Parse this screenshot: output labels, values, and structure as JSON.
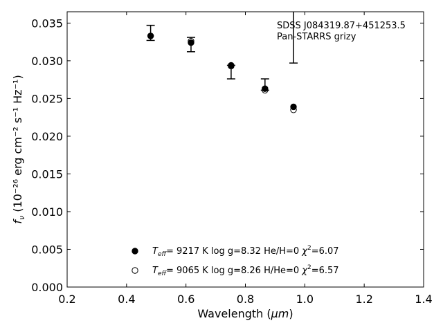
{
  "chart_data": {
    "type": "scatter",
    "xlabel": "Wavelength",
    "xlabel_unit": "μm",
    "ylabel_prefix": "f",
    "ylabel_sub": "ν",
    "ylabel_units": "(10⁻²⁶ erg cm⁻² s⁻¹ Hz⁻¹)",
    "xlim": [
      0.2,
      1.4
    ],
    "ylim": [
      0.0,
      0.0365
    ],
    "xticks": [
      0.2,
      0.4,
      0.6,
      0.8,
      1.0,
      1.2,
      1.4
    ],
    "xtick_labels": [
      "0.2",
      "0.4",
      "0.6",
      "0.8",
      "1.0",
      "1.2",
      "1.4"
    ],
    "yticks": [
      0.0,
      0.005,
      0.01,
      0.015,
      0.02,
      0.025,
      0.03,
      0.035
    ],
    "ytick_labels": [
      "0.000",
      "0.005",
      "0.010",
      "0.015",
      "0.020",
      "0.025",
      "0.030",
      "0.035"
    ],
    "grid": false,
    "annotation": {
      "line1": "SDSS J084319.87+451253.5",
      "line2": "Pan-STARRS grizy"
    },
    "observed": {
      "x": [
        0.481,
        0.617,
        0.752,
        0.866,
        0.962
      ],
      "y_hi": [
        0.0347,
        0.0331,
        0.0294,
        0.0276,
        0.0366
      ],
      "y_lo": [
        0.0327,
        0.0312,
        0.0276,
        0.0261,
        0.0297
      ]
    },
    "series": [
      {
        "marker": "filled-circle",
        "x": [
          0.481,
          0.617,
          0.752,
          0.866,
          0.962
        ],
        "y": [
          0.0333,
          0.0324,
          0.0294,
          0.0263,
          0.0239
        ],
        "legend": {
          "teff_label": "T",
          "teff_sub": "eff",
          "text": "=  9217 K  log g=8.32  He/H=0  ",
          "chi_label": "χ",
          "chi_sup": "2",
          "chi_val": "=6.07"
        }
      },
      {
        "marker": "open-circle",
        "x": [
          0.481,
          0.617,
          0.752,
          0.866,
          0.962
        ],
        "y": [
          0.0333,
          0.0326,
          0.0293,
          0.0261,
          0.0235
        ],
        "legend": {
          "teff_label": "T",
          "teff_sub": "eff",
          "text": "=  9065 K  log g=8.26  H/He=0  ",
          "chi_label": "χ",
          "chi_sup": "2",
          "chi_val": "=6.57"
        }
      }
    ],
    "legend_position": "lower-center"
  }
}
